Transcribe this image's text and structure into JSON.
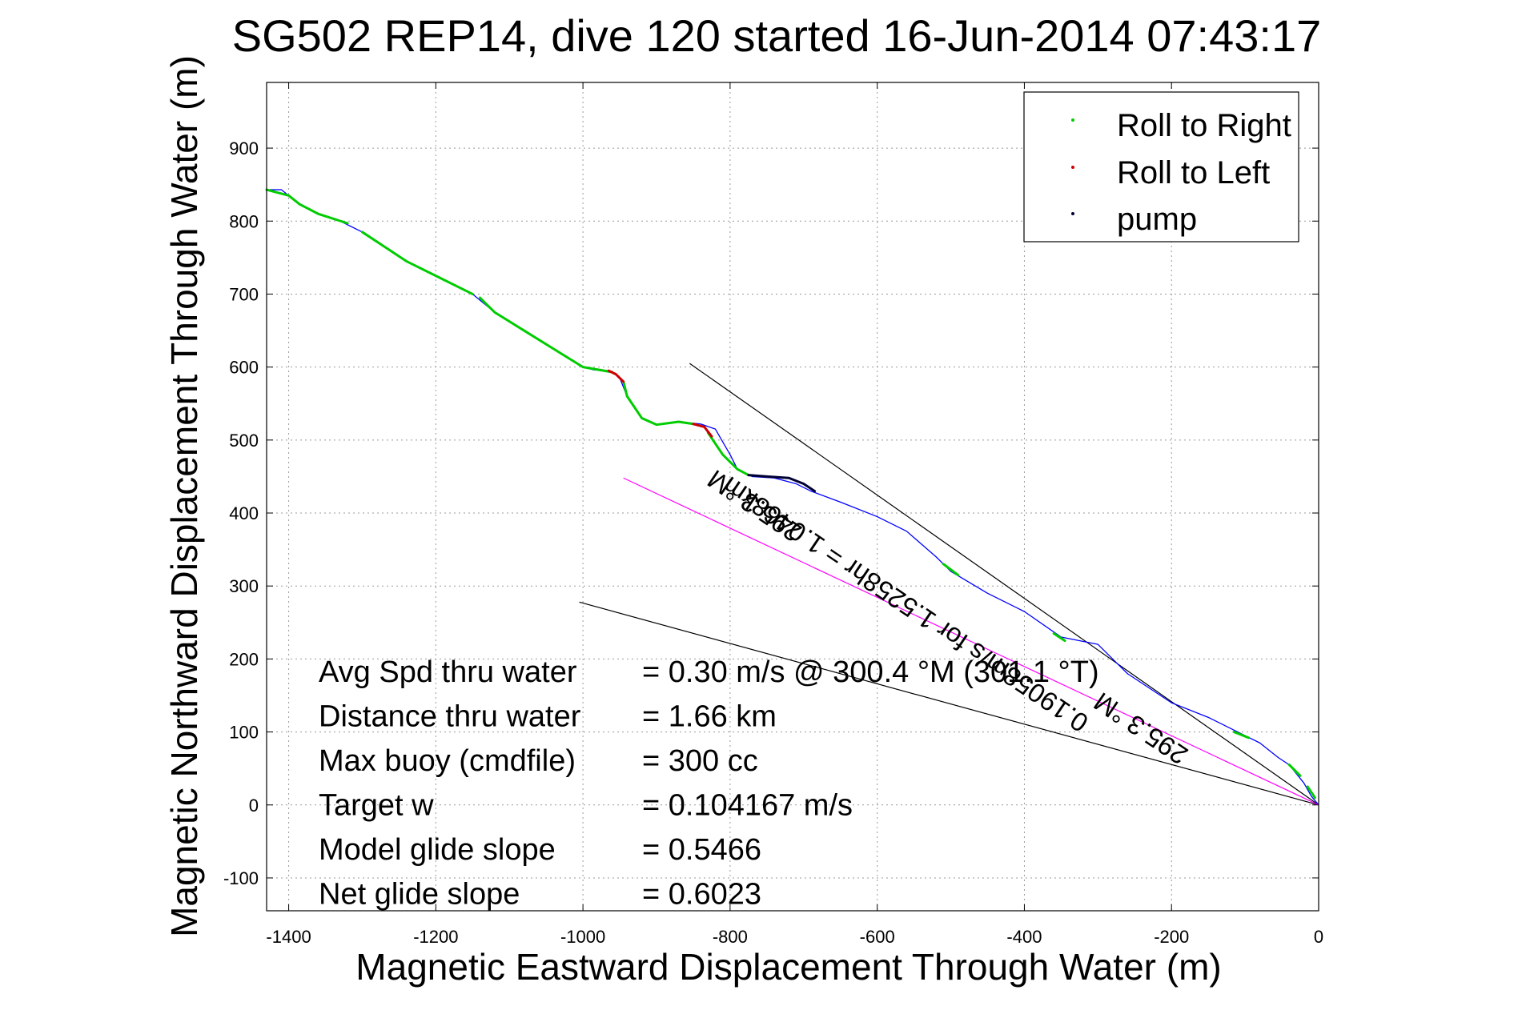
{
  "chart_data": {
    "type": "line",
    "title": "SG502 REP14, dive 120 started 16-Jun-2014 07:43:17",
    "xlabel": "Magnetic Eastward Displacement Through Water (m)",
    "ylabel": "Magnetic Northward Displacement Through Water (m)",
    "xlim": [
      -1430,
      0
    ],
    "ylim": [
      -145,
      990
    ],
    "xticks": [
      -1400,
      -1200,
      -1000,
      -800,
      -600,
      -400,
      -200,
      0
    ],
    "yticks": [
      -100,
      0,
      100,
      200,
      300,
      400,
      500,
      600,
      700,
      800,
      900
    ],
    "xtick_labels": [
      "-1400",
      "-1200",
      "-1000",
      "-800",
      "-600",
      "-400",
      "-200",
      "0"
    ],
    "ytick_labels": [
      "-100",
      "0",
      "100",
      "200",
      "300",
      "400",
      "500",
      "600",
      "700",
      "800",
      "900"
    ],
    "grid": true,
    "legend_position": "top-right",
    "track": {
      "color": "#0000ff",
      "x": [
        0,
        -10,
        -20,
        -40,
        -55,
        -80,
        -100,
        -150,
        -200,
        -260,
        -300,
        -350,
        -400,
        -450,
        -500,
        -520,
        -560,
        -600,
        -650,
        -690,
        -710,
        -740,
        -770,
        -790,
        -800,
        -820,
        -840,
        -870,
        -900,
        -920,
        -940,
        -950,
        -955,
        -965,
        -985,
        -1000,
        -1040,
        -1080,
        -1120,
        -1150,
        -1170,
        -1200,
        -1240,
        -1270,
        -1300,
        -1330,
        -1360,
        -1385,
        -1400,
        -1410,
        -1420,
        -1430
      ],
      "y": [
        0,
        12,
        30,
        55,
        65,
        85,
        95,
        120,
        140,
        180,
        220,
        230,
        265,
        290,
        320,
        340,
        375,
        395,
        415,
        430,
        440,
        448,
        450,
        460,
        480,
        515,
        522,
        525,
        521,
        530,
        560,
        585,
        590,
        595,
        596,
        600,
        625,
        650,
        675,
        700,
        710,
        725,
        745,
        765,
        785,
        800,
        810,
        823,
        835,
        843,
        843,
        843
      ]
    },
    "series": [
      {
        "name": "Roll to Right",
        "color": "#00cc00",
        "segments": [
          [
            [
              -1430,
              843
            ],
            [
              -1400,
              835
            ],
            [
              -1385,
              823
            ],
            [
              -1360,
              810
            ],
            [
              -1320,
              797
            ]
          ],
          [
            [
              -1300,
              785
            ],
            [
              -1270,
              765
            ],
            [
              -1240,
              745
            ],
            [
              -1200,
              725
            ],
            [
              -1170,
              710
            ],
            [
              -1150,
              700
            ]
          ],
          [
            [
              -1140,
              695
            ],
            [
              -1120,
              675
            ],
            [
              -1080,
              650
            ],
            [
              -1040,
              625
            ],
            [
              -1000,
              600
            ],
            [
              -960,
              593
            ]
          ],
          [
            [
              -945,
              580
            ],
            [
              -940,
              560
            ],
            [
              -920,
              530
            ],
            [
              -900,
              521
            ],
            [
              -870,
              525
            ],
            [
              -850,
              522
            ]
          ],
          [
            [
              -830,
              510
            ],
            [
              -810,
              480
            ],
            [
              -790,
              460
            ],
            [
              -775,
              452
            ]
          ],
          [
            [
              -510,
              330
            ],
            [
              -490,
              315
            ]
          ],
          [
            [
              -360,
              235
            ],
            [
              -345,
              225
            ]
          ],
          [
            [
              -115,
              100
            ],
            [
              -95,
              92
            ]
          ],
          [
            [
              -40,
              55
            ],
            [
              -25,
              40
            ]
          ],
          [
            [
              -15,
              25
            ],
            [
              -5,
              10
            ]
          ]
        ]
      },
      {
        "name": "Roll to Left",
        "color": "#cc0000",
        "segments": [
          [
            [
              -965,
              595
            ],
            [
              -955,
              590
            ],
            [
              -945,
              580
            ]
          ],
          [
            [
              -850,
              522
            ],
            [
              -835,
              518
            ],
            [
              -825,
              505
            ]
          ]
        ]
      },
      {
        "name": "pump",
        "color": "#000033",
        "segments": [
          [
            [
              -775,
              452
            ],
            [
              -750,
              450
            ],
            [
              -720,
              448
            ],
            [
              -700,
              440
            ],
            [
              -685,
              430
            ]
          ]
        ]
      }
    ],
    "lines": [
      {
        "color": "#000000",
        "points": [
          [
            -855,
            605
          ],
          [
            0,
            0
          ]
        ]
      },
      {
        "color": "#000000",
        "points": [
          [
            -1005,
            278
          ],
          [
            0,
            0
          ]
        ]
      },
      {
        "color": "#ff00ff",
        "points": [
          [
            -945,
            448
          ],
          [
            0,
            0
          ]
        ]
      }
    ],
    "annotations": [
      {
        "text": "295.3 °M",
        "x": -760,
        "y": 420,
        "rotate": 214
      },
      {
        "text": "0.19058m/s for 1.5258hr = 1.0468km",
        "x": -555,
        "y": 285,
        "rotate": 214
      },
      {
        "text": "295.3 °M",
        "x": -235,
        "y": 115,
        "rotate": 214
      }
    ],
    "stats": [
      {
        "label": "Avg Spd thru water",
        "value": "=  0.30 m/s @ 300.4  °M (301.1  °T)"
      },
      {
        "label": "Distance thru water",
        "value": "=  1.66 km"
      },
      {
        "label": "Max buoy (cmdfile)",
        "value": "= 300 cc"
      },
      {
        "label": "Target w",
        "value": "= 0.104167 m/s"
      },
      {
        "label": "Model glide slope",
        "value": "= 0.5466"
      },
      {
        "label": "Net glide slope",
        "value": "= 0.6023"
      }
    ]
  }
}
